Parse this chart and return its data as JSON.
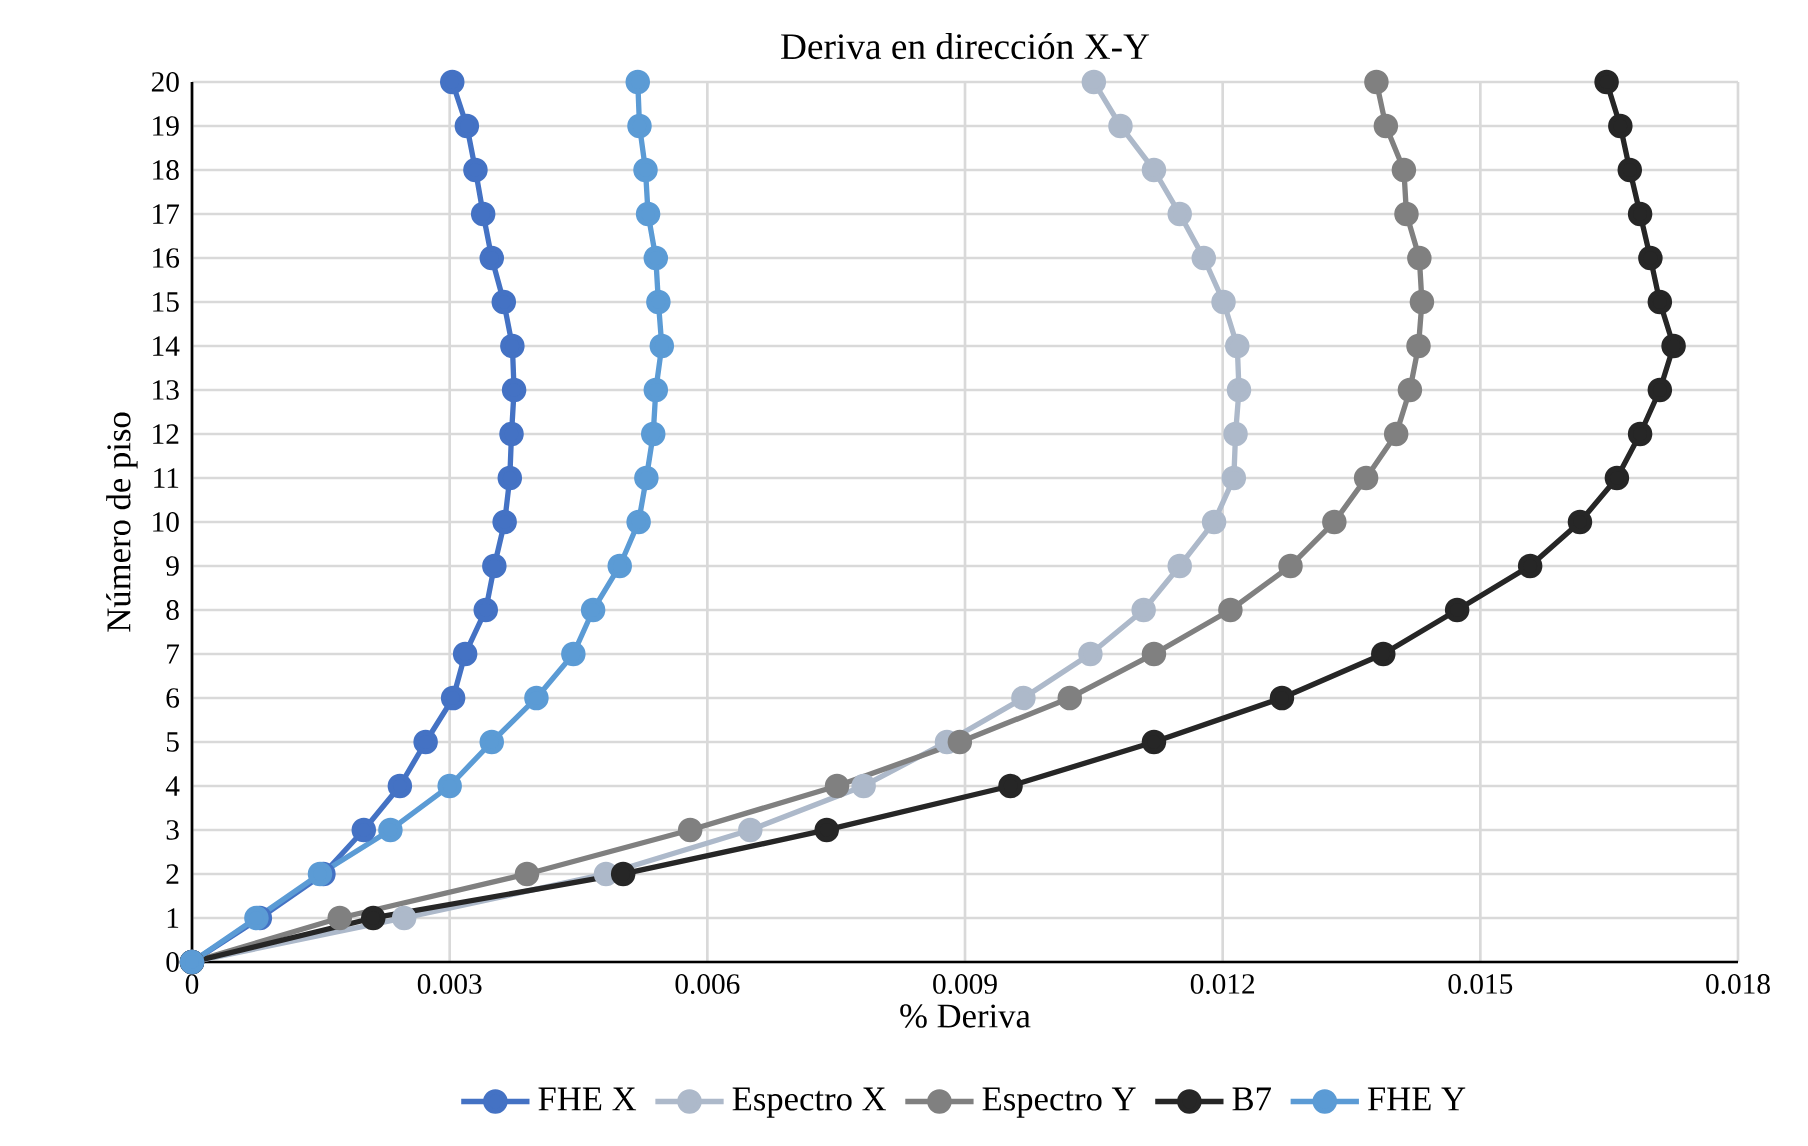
{
  "chart_data": {
    "type": "line",
    "title": "Deriva en dirección X-Y",
    "xlabel": "% Deriva",
    "ylabel": "Número de piso",
    "xlim": [
      0,
      0.018
    ],
    "xticks": [
      0,
      0.003,
      0.006,
      0.009,
      0.012,
      0.015,
      0.018
    ],
    "ylim": [
      0,
      20
    ],
    "yticks": [
      0,
      1,
      2,
      3,
      4,
      5,
      6,
      7,
      8,
      9,
      10,
      11,
      12,
      13,
      14,
      15,
      16,
      17,
      18,
      19,
      20
    ],
    "grid": true,
    "legend": "bottom",
    "marker": "circle",
    "line_style": "solid",
    "series": [
      {
        "name": "FHE X",
        "color": "#4472c4",
        "x": [
          0,
          0.00079,
          0.00153,
          0.002,
          0.00242,
          0.00272,
          0.00304,
          0.00318,
          0.00342,
          0.00352,
          0.00364,
          0.0037,
          0.00372,
          0.00375,
          0.00373,
          0.00363,
          0.00349,
          0.00339,
          0.0033,
          0.0032,
          0.00303
        ],
        "values": [
          0,
          1,
          2,
          3,
          4,
          5,
          6,
          7,
          8,
          9,
          10,
          11,
          12,
          13,
          14,
          15,
          16,
          17,
          18,
          19,
          20
        ]
      },
      {
        "name": "Espectro X",
        "color": "#adb9ca",
        "x": [
          0,
          0.00247,
          0.00482,
          0.0065,
          0.00782,
          0.00879,
          0.00968,
          0.01046,
          0.01108,
          0.0115,
          0.0119,
          0.01213,
          0.01215,
          0.01219,
          0.01217,
          0.01201,
          0.01178,
          0.0115,
          0.0112,
          0.01081,
          0.0105
        ],
        "values": [
          0,
          1,
          2,
          3,
          4,
          5,
          6,
          7,
          8,
          9,
          10,
          11,
          12,
          13,
          14,
          15,
          16,
          17,
          18,
          19,
          20
        ]
      },
      {
        "name": "Espectro Y",
        "color": "#808080",
        "x": [
          0,
          0.00172,
          0.0039,
          0.0058,
          0.00751,
          0.00894,
          0.01022,
          0.0112,
          0.01209,
          0.01279,
          0.0133,
          0.01367,
          0.01402,
          0.01418,
          0.01428,
          0.01432,
          0.01429,
          0.01414,
          0.01411,
          0.0139,
          0.01379
        ],
        "values": [
          0,
          1,
          2,
          3,
          4,
          5,
          6,
          7,
          8,
          9,
          10,
          11,
          12,
          13,
          14,
          15,
          16,
          17,
          18,
          19,
          20
        ]
      },
      {
        "name": "B7",
        "color": "#262626",
        "x": [
          0,
          0.00211,
          0.00502,
          0.00739,
          0.00953,
          0.0112,
          0.01269,
          0.01387,
          0.01473,
          0.01558,
          0.01616,
          0.01659,
          0.01686,
          0.01709,
          0.01725,
          0.01709,
          0.01698,
          0.01686,
          0.01674,
          0.01663,
          0.01647
        ],
        "values": [
          0,
          1,
          2,
          3,
          4,
          5,
          6,
          7,
          8,
          9,
          10,
          11,
          12,
          13,
          14,
          15,
          16,
          17,
          18,
          19,
          20
        ]
      },
      {
        "name": "FHE Y",
        "color": "#5b9bd5",
        "x": [
          0,
          0.00075,
          0.00149,
          0.00231,
          0.003,
          0.00349,
          0.00401,
          0.00444,
          0.00467,
          0.00498,
          0.0052,
          0.00529,
          0.00537,
          0.0054,
          0.00547,
          0.00543,
          0.0054,
          0.00531,
          0.00528,
          0.00521,
          0.00519
        ],
        "values": [
          0,
          1,
          2,
          3,
          4,
          5,
          6,
          7,
          8,
          9,
          10,
          11,
          12,
          13,
          14,
          15,
          16,
          17,
          18,
          19,
          20
        ]
      }
    ]
  }
}
